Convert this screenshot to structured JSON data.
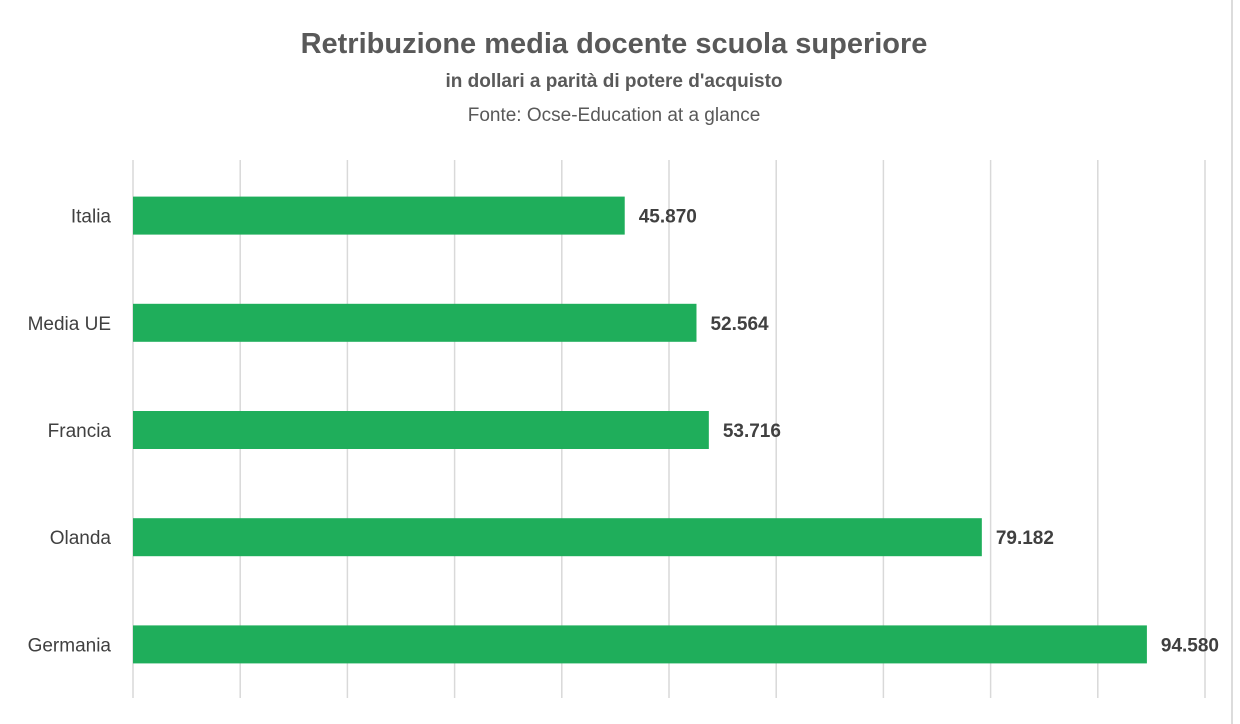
{
  "chart_data": {
    "type": "bar",
    "orientation": "horizontal",
    "title": "Retribuzione media docente scuola superiore",
    "subtitle": "in dollari a parità di potere d'acquisto",
    "source": "Fonte: Ocse-Education at a glance",
    "categories": [
      "Italia",
      "Media UE",
      "Francia",
      "Olanda",
      "Germania"
    ],
    "values": [
      45870,
      52564,
      53716,
      79182,
      94580
    ],
    "value_labels": [
      "45.870",
      "52.564",
      "53.716",
      "79.182",
      "94.580"
    ],
    "xlim": [
      0,
      100000
    ],
    "grid_step": 10000,
    "xaxis_tick_labels_visible": false,
    "grid": true,
    "legend": "none",
    "bar_color": "#1FAE5B"
  }
}
